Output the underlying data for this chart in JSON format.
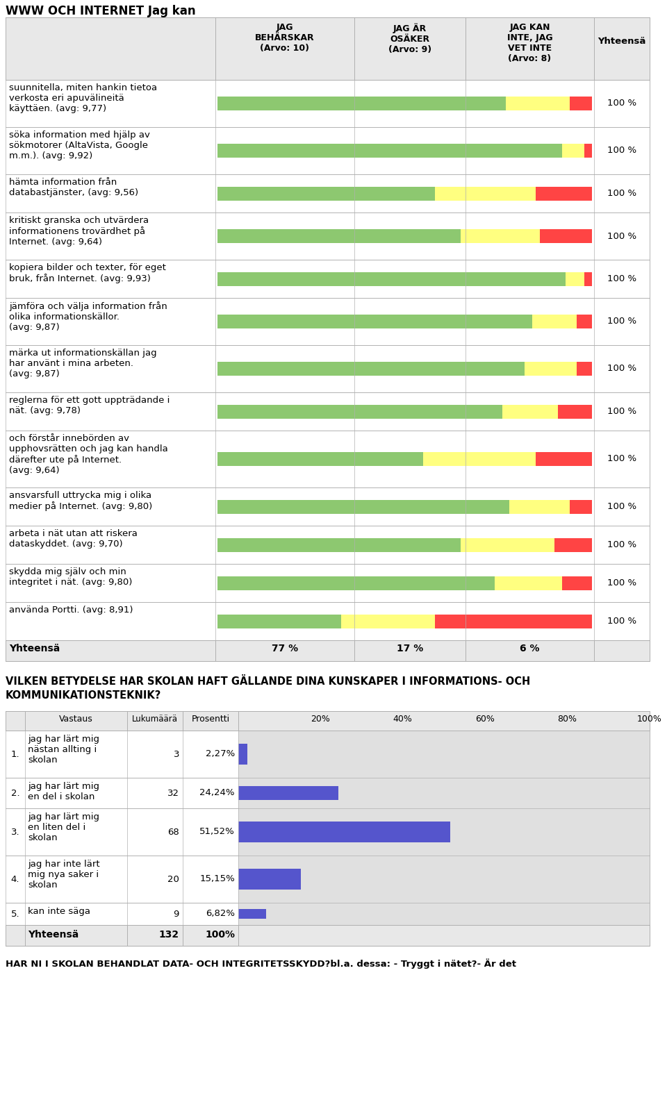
{
  "title": "WWW OCH INTERNET Jag kan",
  "rows": [
    {
      "label": "suunnitella, miten hankin tietoa\nverkosta eri apuvälineitä\nkäyttäen. (avg: 9,77)",
      "bar_green": 77,
      "bar_yellow": 17,
      "bar_red": 6
    },
    {
      "label": "söka information med hjälp av\nsökmotorer (AltaVista, Google\nm.m.). (avg: 9,92)",
      "bar_green": 92,
      "bar_yellow": 6,
      "bar_red": 2
    },
    {
      "label": "hämta information från\ndatabastjänster, (avg: 9,56)",
      "bar_green": 58,
      "bar_yellow": 27,
      "bar_red": 15
    },
    {
      "label": "kritiskt granska och utvärdera\ninformationens trovärdhet på\nInternet. (avg: 9,64)",
      "bar_green": 65,
      "bar_yellow": 21,
      "bar_red": 14
    },
    {
      "label": "kopiera bilder och texter, för eget\nbruk, från Internet. (avg: 9,93)",
      "bar_green": 93,
      "bar_yellow": 5,
      "bar_red": 2
    },
    {
      "label": "jämföra och välja information från\nolika informationskällor.\n(avg: 9,87)",
      "bar_green": 84,
      "bar_yellow": 12,
      "bar_red": 4
    },
    {
      "label": "märka ut informationskällan jag\nhar använt i mina arbeten.\n(avg: 9,87)",
      "bar_green": 82,
      "bar_yellow": 14,
      "bar_red": 4
    },
    {
      "label": "reglerna för ett gott uppträdande i\nnät. (avg: 9,78)",
      "bar_green": 76,
      "bar_yellow": 15,
      "bar_red": 9
    },
    {
      "label": "och förstår innebörden av\nupphovsrätten och jag kan handla\ndärefter ute på Internet.\n(avg: 9,64)",
      "bar_green": 55,
      "bar_yellow": 30,
      "bar_red": 15
    },
    {
      "label": "ansvarsfull uttrycka mig i olika\nmedier på Internet. (avg: 9,80)",
      "bar_green": 78,
      "bar_yellow": 16,
      "bar_red": 6
    },
    {
      "label": "arbeta i nät utan att riskera\ndataskyddet. (avg: 9,70)",
      "bar_green": 65,
      "bar_yellow": 25,
      "bar_red": 10
    },
    {
      "label": "skydda mig själv och min\nintegritet i nät. (avg: 9,80)",
      "bar_green": 74,
      "bar_yellow": 18,
      "bar_red": 8
    },
    {
      "label": "använda Portti. (avg: 8,91)",
      "bar_green": 33,
      "bar_yellow": 25,
      "bar_red": 42
    }
  ],
  "footer_label": "Yhteensä",
  "footer_pct": [
    "77 %",
    "17 %",
    "6 %"
  ],
  "green_color": "#8DC870",
  "yellow_color": "#FFFF80",
  "red_color": "#FF4444",
  "light_gray": "#E8E8E8",
  "mid_gray": "#B0B0B0",
  "white": "#FFFFFF",
  "section2_title_line1": "VILKEN BETYDELSE HAR SKOLAN HAFT GÄLLANDE DINA KUNSKAPER I INFORMATIONS- OCH",
  "section2_title_line2": "KOMMUNIKATIONSTEKNIK?",
  "table2_rows": [
    {
      "num": "1.",
      "label": "jag har lärt mig\nnästan allting i\nskolan",
      "count": "3",
      "pct": "2,27%",
      "bar": 2.27
    },
    {
      "num": "2.",
      "label": "jag har lärt mig\nen del i skolan",
      "count": "32",
      "pct": "24,24%",
      "bar": 24.24
    },
    {
      "num": "3.",
      "label": "jag har lärt mig\nen liten del i\nskolan",
      "count": "68",
      "pct": "51,52%",
      "bar": 51.52
    },
    {
      "num": "4.",
      "label": "jag har inte lärt\nmig nya saker i\nskolan",
      "count": "20",
      "pct": "15,15%",
      "bar": 15.15
    },
    {
      "num": "5.",
      "label": "kan inte säga",
      "count": "9",
      "pct": "6,82%",
      "bar": 6.82
    }
  ],
  "bar2_color": "#5555CC",
  "bar2_bg": "#E0E0E0",
  "footer_text": "HAR NI I SKOLAN BEHANDLAT DATA- OCH INTEGRITETSSKYDD?bl.a. dessa: - Tryggt i nätet?- Är det"
}
